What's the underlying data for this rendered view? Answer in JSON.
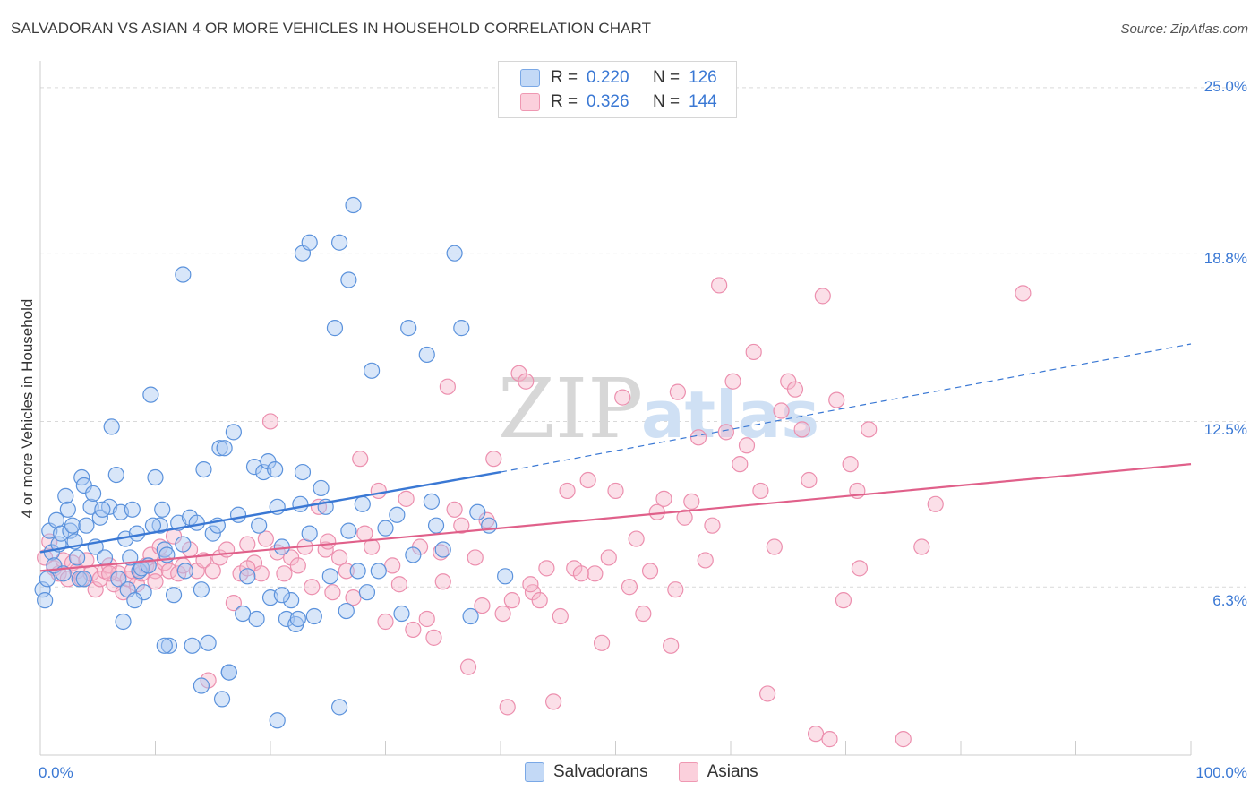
{
  "header": {
    "title": "SALVADORAN VS ASIAN 4 OR MORE VEHICLES IN HOUSEHOLD CORRELATION CHART",
    "source": "Source: ZipAtlas.com"
  },
  "legend": {
    "rows": [
      {
        "r_key": "R =",
        "r_value": "0.220",
        "n_key": "N =",
        "n_value": "126",
        "color": "#a9c8f2"
      },
      {
        "r_key": "R =",
        "r_value": "0.326",
        "n_key": "N =",
        "n_value": "144",
        "color": "#f7b9cb"
      }
    ],
    "bottom": [
      {
        "label": "Salvadorans",
        "color": "#a9c8f2"
      },
      {
        "label": "Asians",
        "color": "#f7b9cb"
      }
    ]
  },
  "axes": {
    "y_title": "4 or more Vehicles in Household",
    "y_ticks": [
      "25.0%",
      "18.8%",
      "12.5%",
      "6.3%"
    ],
    "x_ticks": [
      "0.0%",
      "100.0%"
    ]
  },
  "watermark": {
    "zip": "ZIP",
    "atlas": "atlas"
  },
  "colors": {
    "blue": "#3a78d4",
    "pink": "#e0608a",
    "blue_fill": "#a9c8f2",
    "pink_fill": "#f7b9cb"
  },
  "chart_data": {
    "type": "scatter",
    "title": "SALVADORAN VS ASIAN 4 OR MORE VEHICLES IN HOUSEHOLD CORRELATION CHART",
    "xlabel": "",
    "ylabel": "4 or more Vehicles in Household",
    "xlim": [
      0,
      100
    ],
    "ylim": [
      0,
      25.6
    ],
    "y_ticks": [
      6.3,
      12.5,
      18.8,
      25.0
    ],
    "grid": "horizontal dashed",
    "series": [
      {
        "name": "Salvadorans",
        "color": "#3a78d4",
        "r": 0.22,
        "n": 126,
        "trend": {
          "x0": 0,
          "y0": 7.6,
          "x1": 40,
          "y1": 10.6,
          "dash_x1": 100,
          "dash_y1": 15.4
        },
        "points": [
          [
            0.2,
            6.2
          ],
          [
            0.4,
            5.8
          ],
          [
            0.6,
            6.6
          ],
          [
            0.8,
            8.4
          ],
          [
            1.0,
            7.6
          ],
          [
            1.2,
            7.1
          ],
          [
            1.4,
            8.8
          ],
          [
            1.6,
            7.9
          ],
          [
            1.8,
            8.3
          ],
          [
            2.0,
            6.8
          ],
          [
            2.2,
            9.7
          ],
          [
            2.4,
            9.2
          ],
          [
            2.6,
            8.4
          ],
          [
            2.8,
            8.6
          ],
          [
            3.0,
            8.0
          ],
          [
            3.2,
            7.4
          ],
          [
            3.4,
            6.6
          ],
          [
            3.6,
            10.4
          ],
          [
            3.8,
            10.1
          ],
          [
            4.0,
            8.6
          ],
          [
            4.4,
            9.3
          ],
          [
            4.6,
            9.8
          ],
          [
            4.8,
            7.8
          ],
          [
            5.2,
            8.9
          ],
          [
            5.6,
            7.4
          ],
          [
            6.0,
            9.3
          ],
          [
            6.2,
            12.3
          ],
          [
            6.6,
            10.5
          ],
          [
            6.8,
            6.6
          ],
          [
            7.0,
            9.1
          ],
          [
            7.4,
            8.1
          ],
          [
            7.6,
            6.2
          ],
          [
            7.8,
            7.4
          ],
          [
            8.0,
            9.2
          ],
          [
            8.4,
            8.3
          ],
          [
            8.6,
            6.9
          ],
          [
            8.8,
            7.0
          ],
          [
            9.0,
            6.1
          ],
          [
            9.4,
            7.1
          ],
          [
            9.6,
            13.5
          ],
          [
            10.0,
            10.4
          ],
          [
            10.4,
            8.6
          ],
          [
            10.6,
            9.2
          ],
          [
            10.8,
            7.7
          ],
          [
            11.0,
            7.5
          ],
          [
            11.2,
            4.1
          ],
          [
            11.6,
            6.0
          ],
          [
            12.0,
            8.7
          ],
          [
            12.4,
            7.9
          ],
          [
            12.6,
            6.9
          ],
          [
            13.0,
            8.9
          ],
          [
            13.2,
            4.1
          ],
          [
            13.6,
            8.7
          ],
          [
            14.0,
            6.2
          ],
          [
            14.2,
            10.7
          ],
          [
            14.6,
            4.2
          ],
          [
            15.0,
            8.3
          ],
          [
            15.4,
            8.6
          ],
          [
            15.6,
            11.5
          ],
          [
            16.0,
            11.5
          ],
          [
            16.4,
            3.1
          ],
          [
            16.8,
            12.1
          ],
          [
            17.2,
            9.0
          ],
          [
            17.6,
            5.3
          ],
          [
            18.0,
            6.7
          ],
          [
            18.6,
            10.8
          ],
          [
            19.0,
            8.6
          ],
          [
            19.4,
            10.6
          ],
          [
            19.8,
            11.0
          ],
          [
            20.0,
            5.9
          ],
          [
            20.4,
            10.7
          ],
          [
            20.6,
            9.3
          ],
          [
            21.0,
            7.8
          ],
          [
            21.4,
            5.1
          ],
          [
            21.8,
            5.8
          ],
          [
            22.2,
            4.9
          ],
          [
            22.6,
            9.4
          ],
          [
            22.8,
            10.6
          ],
          [
            23.4,
            8.3
          ],
          [
            23.8,
            5.2
          ],
          [
            24.4,
            10.0
          ],
          [
            24.8,
            9.3
          ],
          [
            25.6,
            16.0
          ],
          [
            26.6,
            5.4
          ],
          [
            26.8,
            8.4
          ],
          [
            27.6,
            6.9
          ],
          [
            28.0,
            9.4
          ],
          [
            28.4,
            6.1
          ],
          [
            28.8,
            14.4
          ],
          [
            29.4,
            6.9
          ],
          [
            30.0,
            8.5
          ],
          [
            31.0,
            9.0
          ],
          [
            31.4,
            5.3
          ],
          [
            32.0,
            16.0
          ],
          [
            32.4,
            7.5
          ],
          [
            33.6,
            15.0
          ],
          [
            34.0,
            9.5
          ],
          [
            34.4,
            8.6
          ],
          [
            35.0,
            7.7
          ],
          [
            36.0,
            18.8
          ],
          [
            36.6,
            16.0
          ],
          [
            37.4,
            5.2
          ],
          [
            38.0,
            9.1
          ],
          [
            39.0,
            8.6
          ],
          [
            40.4,
            6.7
          ],
          [
            12.4,
            18.0
          ],
          [
            22.8,
            18.8
          ],
          [
            23.4,
            19.2
          ],
          [
            27.2,
            20.6
          ],
          [
            26.0,
            19.2
          ],
          [
            26.8,
            17.8
          ],
          [
            9.8,
            8.6
          ],
          [
            5.4,
            9.2
          ],
          [
            3.8,
            6.6
          ],
          [
            15.8,
            2.1
          ],
          [
            16.4,
            3.1
          ],
          [
            14.0,
            2.6
          ],
          [
            20.6,
            1.3
          ],
          [
            26.0,
            1.8
          ],
          [
            18.8,
            5.1
          ],
          [
            21.0,
            6.0
          ],
          [
            22.4,
            5.1
          ],
          [
            25.2,
            6.7
          ],
          [
            7.2,
            5.0
          ],
          [
            8.2,
            5.8
          ],
          [
            10.8,
            4.1
          ]
        ]
      },
      {
        "name": "Asians",
        "color": "#e0608a",
        "r": 0.326,
        "n": 144,
        "trend": {
          "x0": 0,
          "y0": 6.9,
          "x1": 100,
          "y1": 10.9
        },
        "points": [
          [
            0.4,
            7.4
          ],
          [
            0.8,
            8.0
          ],
          [
            1.2,
            7.0
          ],
          [
            1.6,
            6.8
          ],
          [
            2.0,
            7.3
          ],
          [
            2.4,
            6.6
          ],
          [
            2.8,
            7.2
          ],
          [
            3.2,
            6.9
          ],
          [
            3.6,
            6.6
          ],
          [
            4.0,
            7.3
          ],
          [
            4.4,
            6.8
          ],
          [
            4.8,
            6.2
          ],
          [
            5.2,
            6.6
          ],
          [
            5.6,
            6.9
          ],
          [
            6.0,
            7.1
          ],
          [
            6.4,
            6.4
          ],
          [
            6.8,
            6.8
          ],
          [
            7.2,
            6.1
          ],
          [
            7.6,
            6.6
          ],
          [
            8.0,
            6.9
          ],
          [
            8.4,
            6.4
          ],
          [
            8.8,
            6.8
          ],
          [
            9.2,
            7.1
          ],
          [
            9.6,
            7.5
          ],
          [
            10.0,
            6.9
          ],
          [
            10.4,
            7.8
          ],
          [
            10.8,
            7.2
          ],
          [
            11.2,
            6.9
          ],
          [
            11.6,
            8.2
          ],
          [
            12.0,
            6.8
          ],
          [
            12.4,
            7.1
          ],
          [
            13.0,
            7.7
          ],
          [
            13.6,
            6.9
          ],
          [
            14.2,
            7.3
          ],
          [
            14.6,
            2.8
          ],
          [
            15.0,
            6.9
          ],
          [
            15.6,
            7.4
          ],
          [
            16.2,
            7.7
          ],
          [
            16.8,
            5.7
          ],
          [
            17.4,
            6.8
          ],
          [
            18.0,
            7.9
          ],
          [
            18.6,
            7.2
          ],
          [
            19.2,
            6.8
          ],
          [
            19.6,
            8.1
          ],
          [
            20.0,
            12.5
          ],
          [
            20.6,
            7.6
          ],
          [
            21.2,
            6.8
          ],
          [
            21.8,
            7.4
          ],
          [
            22.4,
            7.1
          ],
          [
            23.0,
            7.8
          ],
          [
            23.6,
            6.3
          ],
          [
            24.2,
            9.3
          ],
          [
            24.8,
            7.7
          ],
          [
            25.4,
            6.1
          ],
          [
            26.0,
            7.4
          ],
          [
            26.6,
            6.9
          ],
          [
            27.2,
            5.9
          ],
          [
            27.8,
            11.1
          ],
          [
            28.2,
            8.3
          ],
          [
            28.8,
            7.8
          ],
          [
            29.4,
            9.9
          ],
          [
            30.0,
            5.0
          ],
          [
            30.6,
            7.1
          ],
          [
            31.2,
            6.4
          ],
          [
            31.8,
            9.6
          ],
          [
            32.4,
            4.7
          ],
          [
            33.0,
            7.8
          ],
          [
            33.6,
            5.1
          ],
          [
            34.2,
            4.4
          ],
          [
            34.8,
            7.6
          ],
          [
            35.4,
            13.8
          ],
          [
            36.0,
            9.2
          ],
          [
            36.6,
            8.6
          ],
          [
            37.2,
            3.3
          ],
          [
            37.8,
            7.4
          ],
          [
            38.4,
            5.6
          ],
          [
            38.8,
            8.8
          ],
          [
            39.4,
            11.1
          ],
          [
            40.2,
            5.3
          ],
          [
            40.6,
            1.8
          ],
          [
            41.0,
            5.8
          ],
          [
            41.6,
            14.3
          ],
          [
            42.2,
            14.0
          ],
          [
            42.8,
            6.1
          ],
          [
            43.4,
            5.8
          ],
          [
            44.0,
            7.0
          ],
          [
            44.6,
            2.0
          ],
          [
            45.2,
            5.2
          ],
          [
            45.8,
            9.9
          ],
          [
            46.4,
            7.0
          ],
          [
            47.0,
            6.8
          ],
          [
            47.6,
            10.3
          ],
          [
            48.2,
            6.8
          ],
          [
            48.8,
            4.2
          ],
          [
            49.4,
            7.4
          ],
          [
            50.0,
            9.9
          ],
          [
            50.6,
            13.4
          ],
          [
            51.2,
            6.3
          ],
          [
            51.8,
            8.1
          ],
          [
            52.4,
            5.3
          ],
          [
            53.0,
            6.9
          ],
          [
            53.6,
            9.1
          ],
          [
            54.2,
            9.6
          ],
          [
            54.8,
            4.1
          ],
          [
            55.4,
            13.6
          ],
          [
            56.0,
            8.9
          ],
          [
            56.6,
            9.5
          ],
          [
            57.2,
            11.9
          ],
          [
            57.8,
            7.3
          ],
          [
            58.4,
            8.6
          ],
          [
            59.0,
            17.6
          ],
          [
            59.6,
            12.1
          ],
          [
            60.2,
            14.0
          ],
          [
            60.8,
            10.9
          ],
          [
            61.4,
            11.6
          ],
          [
            62.0,
            15.1
          ],
          [
            62.6,
            9.9
          ],
          [
            63.2,
            2.3
          ],
          [
            63.8,
            7.8
          ],
          [
            64.4,
            12.9
          ],
          [
            65.0,
            14.0
          ],
          [
            65.6,
            13.7
          ],
          [
            66.2,
            12.2
          ],
          [
            66.8,
            10.3
          ],
          [
            67.4,
            0.8
          ],
          [
            68.0,
            17.2
          ],
          [
            68.6,
            0.6
          ],
          [
            69.2,
            13.3
          ],
          [
            69.8,
            5.8
          ],
          [
            70.4,
            10.9
          ],
          [
            71.0,
            9.9
          ],
          [
            71.2,
            7.0
          ],
          [
            72.0,
            12.2
          ],
          [
            75.0,
            0.6
          ],
          [
            76.6,
            7.8
          ],
          [
            77.8,
            9.4
          ],
          [
            85.4,
            17.3
          ],
          [
            42.6,
            6.4
          ],
          [
            55.2,
            6.2
          ],
          [
            35.0,
            6.5
          ],
          [
            25.0,
            8.0
          ],
          [
            18.0,
            7.0
          ],
          [
            10.0,
            6.5
          ],
          [
            6.0,
            6.8
          ]
        ]
      }
    ]
  }
}
